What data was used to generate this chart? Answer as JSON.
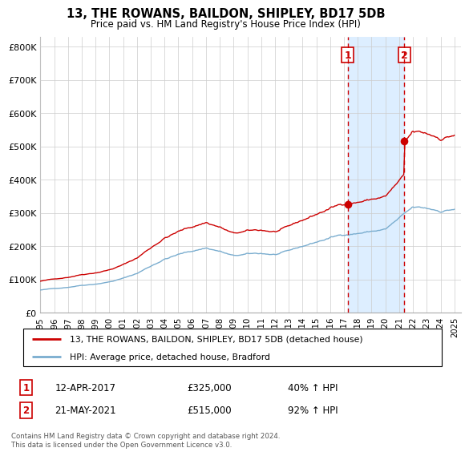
{
  "title": "13, THE ROWANS, BAILDON, SHIPLEY, BD17 5DB",
  "subtitle": "Price paid vs. HM Land Registry's House Price Index (HPI)",
  "red_label": "13, THE ROWANS, BAILDON, SHIPLEY, BD17 5DB (detached house)",
  "blue_label": "HPI: Average price, detached house, Bradford",
  "annotation1_date": "12-APR-2017",
  "annotation1_price": "£325,000",
  "annotation1_hpi": "40% ↑ HPI",
  "annotation2_date": "21-MAY-2021",
  "annotation2_price": "£515,000",
  "annotation2_hpi": "92% ↑ HPI",
  "copyright": "Contains HM Land Registry data © Crown copyright and database right 2024.\nThis data is licensed under the Open Government Licence v3.0.",
  "red_color": "#cc0000",
  "blue_color": "#7aadcf",
  "shade_color": "#ddeeff",
  "annotation_color": "#cc0000",
  "purchase1_year": 2017.28,
  "purchase1_price": 325000,
  "purchase2_year": 2021.38,
  "purchase2_price": 515000,
  "xlim_start": 1995.0,
  "xlim_end": 2025.5,
  "ylim": [
    0,
    830000
  ],
  "yticks": [
    0,
    100000,
    200000,
    300000,
    400000,
    500000,
    600000,
    700000,
    800000
  ],
  "ytick_labels": [
    "£0",
    "£100K",
    "£200K",
    "£300K",
    "£400K",
    "£500K",
    "£600K",
    "£700K",
    "£800K"
  ]
}
